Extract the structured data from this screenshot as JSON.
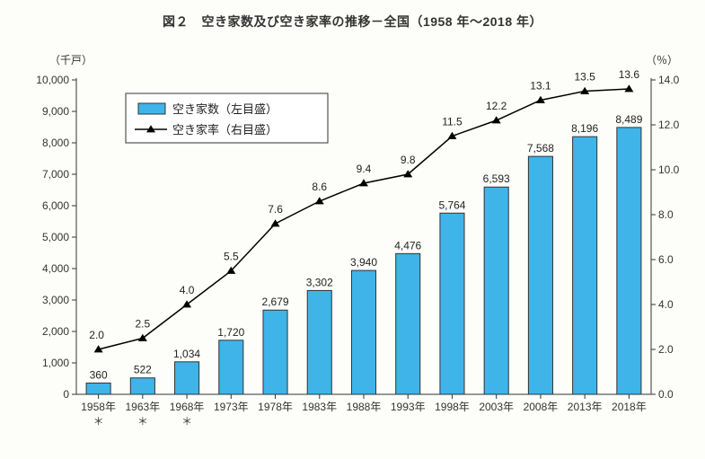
{
  "title": "図２　空き家数及び空き家率の推移－全国（1958 年～2018 年）",
  "y_left_label": "（千戸）",
  "y_right_label": "（％）",
  "chart": {
    "type": "bar+line",
    "background_color": "#fdfdfa",
    "plot_border_color": "#333333",
    "grid_color": "none",
    "bar_color": "#3fb4e8",
    "bar_border_color": "#333333",
    "line_color": "#000000",
    "marker_shape": "triangle",
    "marker_fill": "#000000",
    "bar_width_ratio": 0.55,
    "y_left": {
      "min": 0,
      "max": 10000,
      "step": 1000
    },
    "y_right": {
      "min": 0.0,
      "max": 14.0,
      "step": 2.0
    },
    "categories": [
      "1958年",
      "1963年",
      "1968年",
      "1973年",
      "1978年",
      "1983年",
      "1988年",
      "1993年",
      "1998年",
      "2003年",
      "2008年",
      "2013年",
      "2018年"
    ],
    "asterisk_indices": [
      0,
      1,
      2
    ],
    "bar_values": [
      360,
      522,
      1034,
      1720,
      2679,
      3302,
      3940,
      4476,
      5764,
      6593,
      7568,
      8196,
      8489
    ],
    "bar_labels": [
      "360",
      "522",
      "1,034",
      "1,720",
      "2,679",
      "3,302",
      "3,940",
      "4,476",
      "5,764",
      "6,593",
      "7,568",
      "8,196",
      "8,489"
    ],
    "line_values": [
      2.0,
      2.5,
      4.0,
      5.5,
      7.6,
      8.6,
      9.4,
      9.8,
      11.5,
      12.2,
      13.1,
      13.5,
      13.6
    ],
    "line_labels": [
      "2.0",
      "2.5",
      "4.0",
      "5.5",
      "7.6",
      "8.6",
      "9.4",
      "9.8",
      "11.5",
      "12.2",
      "13.1",
      "13.5",
      "13.6"
    ],
    "legend": {
      "bars": "空き家数（左目盛）",
      "line": "空き家率（右目盛）"
    },
    "label_fontsize": 12,
    "title_fontsize": 14,
    "y_left_ticks": [
      "0",
      "1,000",
      "2,000",
      "3,000",
      "4,000",
      "5,000",
      "6,000",
      "7,000",
      "8,000",
      "9,000",
      "10,000"
    ],
    "y_right_ticks": [
      "0.0",
      "2.0",
      "4.0",
      "6.0",
      "8.0",
      "10.0",
      "12.0",
      "14.0"
    ]
  }
}
